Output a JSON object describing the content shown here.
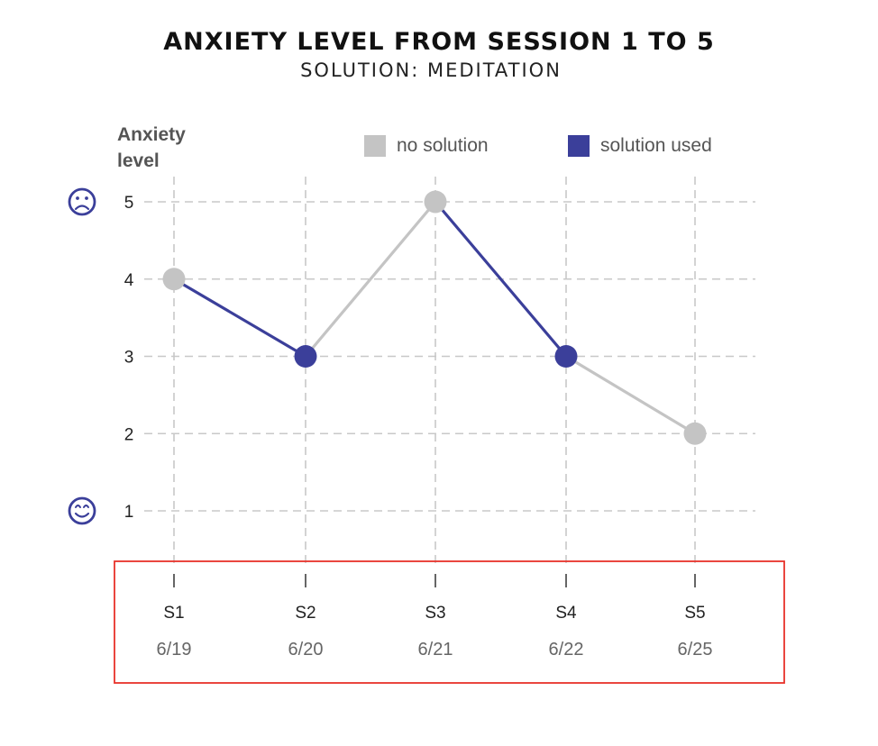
{
  "chart_data": {
    "type": "line",
    "title": "ANXIETY LEVEL FROM SESSION 1 TO 5",
    "subtitle": "SOLUTION: MEDITATION",
    "ylabel_line1": "Anxiety",
    "ylabel_line2": "level",
    "ylim": [
      1,
      5
    ],
    "yticks": [
      "1",
      "2",
      "3",
      "4",
      "5"
    ],
    "categories": [
      "S1",
      "S2",
      "S3",
      "S4",
      "S5"
    ],
    "dates": [
      "6/19",
      "6/20",
      "6/21",
      "6/22",
      "6/25"
    ],
    "values": [
      4,
      3,
      5,
      3,
      2
    ],
    "point_status": [
      "no solution",
      "solution used",
      "no solution",
      "solution used",
      "no solution"
    ],
    "segment_status": [
      "solution used",
      "no solution",
      "solution used",
      "no solution"
    ],
    "legend": [
      {
        "label": "no solution",
        "color": "#c4c4c4"
      },
      {
        "label": "solution used",
        "color": "#3b3f9a"
      }
    ],
    "legend_placement": "top-right",
    "grid": true,
    "icons": {
      "high": "sad-face-icon",
      "low": "happy-face-icon"
    },
    "highlight_color": "#e8322a"
  }
}
